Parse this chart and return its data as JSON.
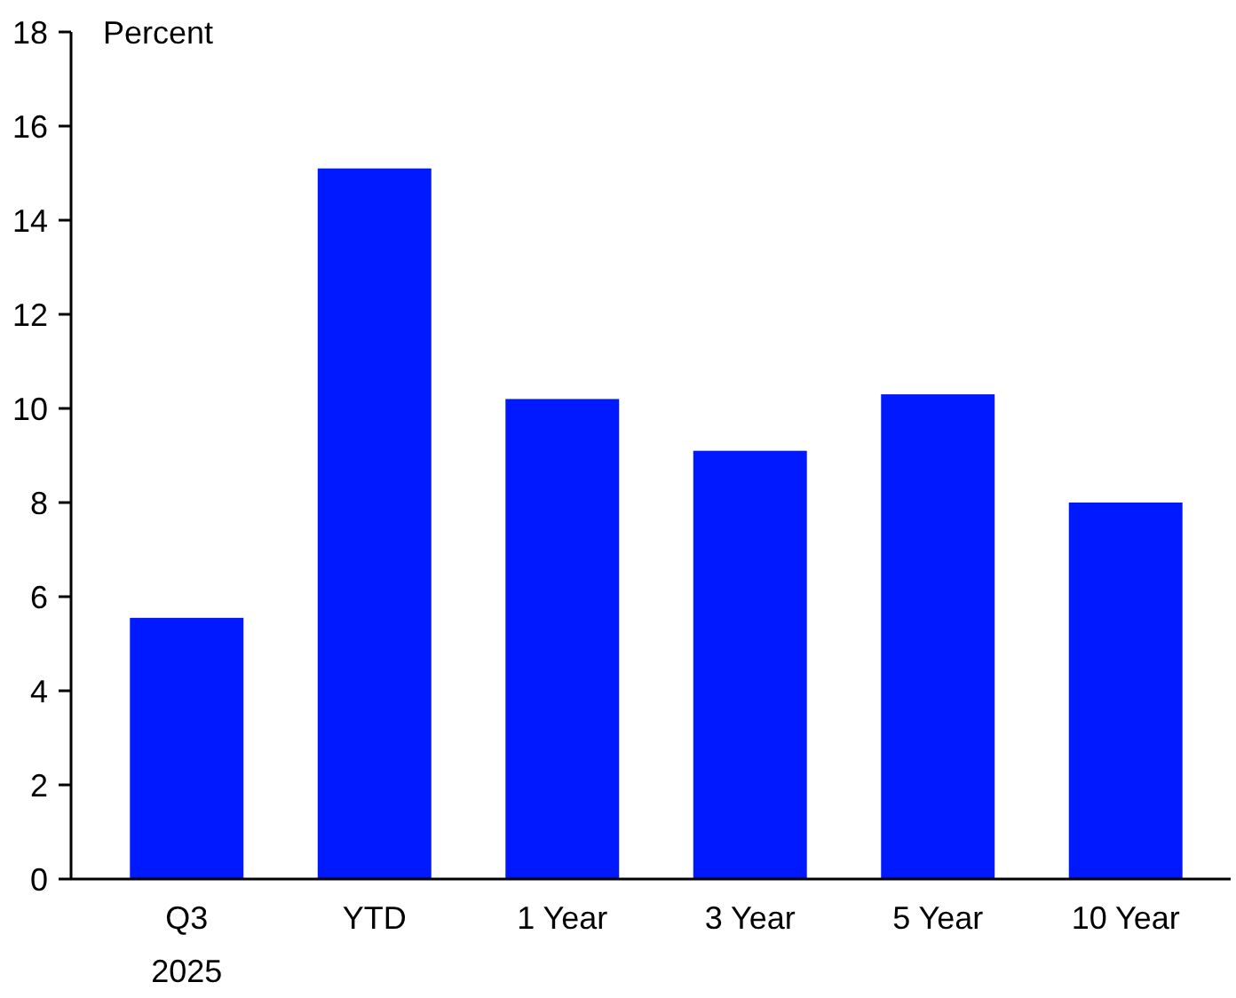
{
  "chart_data": {
    "type": "bar",
    "ylabel": "Percent",
    "categories": [
      "Q3\n2025",
      "YTD",
      "1 Year",
      "3 Year",
      "5 Year",
      "10 Year"
    ],
    "values": [
      5.55,
      15.1,
      10.2,
      9.1,
      10.3,
      8.0
    ],
    "color": "#0019ff",
    "ylim": [
      0,
      18
    ],
    "yticks": [
      0,
      2,
      4,
      6,
      8,
      10,
      12,
      14,
      16,
      18
    ],
    "grid": false
  }
}
